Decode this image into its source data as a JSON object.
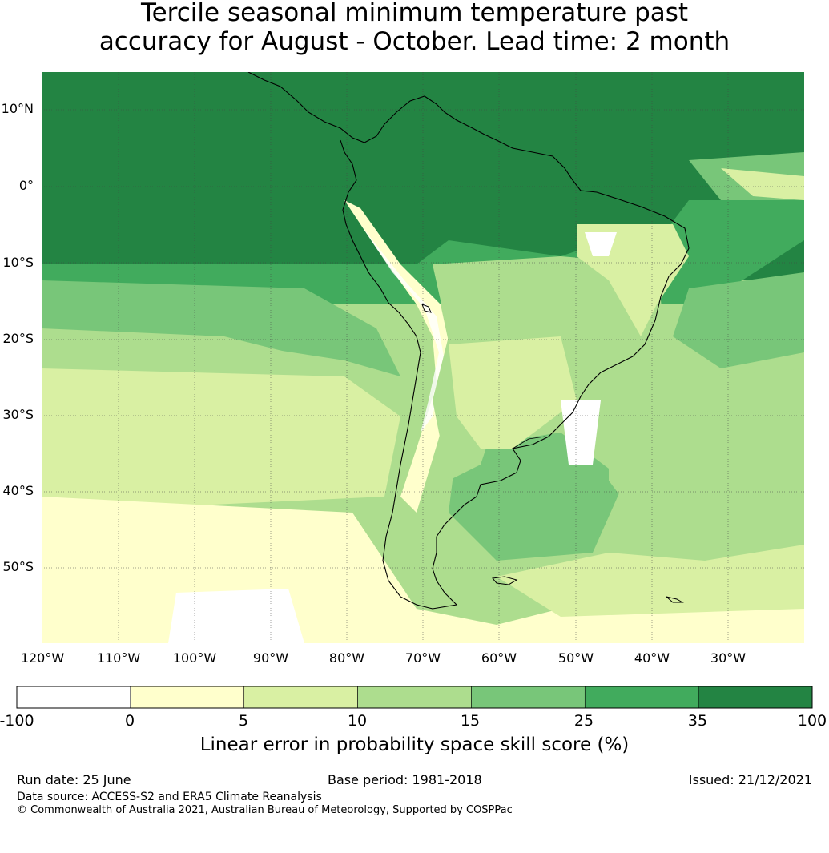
{
  "title": {
    "line1": "Tercile seasonal minimum temperature past",
    "line2": "accuracy for August - October. Lead time: 2 month"
  },
  "map": {
    "lat_labels": [
      "10°N",
      "0°",
      "10°S",
      "20°S",
      "30°S",
      "40°S",
      "50°S"
    ],
    "lon_labels": [
      "120°W",
      "110°W",
      "100°W",
      "90°W",
      "80°W",
      "70°W",
      "60°W",
      "50°W",
      "40°W",
      "30°W"
    ]
  },
  "colorbar": {
    "ticks": [
      "-100",
      "0",
      "5",
      "10",
      "15",
      "25",
      "35",
      "100"
    ],
    "bins": [
      {
        "from": -100,
        "to": 0,
        "color": "#ffffff"
      },
      {
        "from": 0,
        "to": 5,
        "color": "#ffffcc"
      },
      {
        "from": 5,
        "to": 10,
        "color": "#d9f0a3"
      },
      {
        "from": 10,
        "to": 15,
        "color": "#addd8e"
      },
      {
        "from": 15,
        "to": 25,
        "color": "#78c679"
      },
      {
        "from": 25,
        "to": 35,
        "color": "#41ab5d"
      },
      {
        "from": 35,
        "to": 100,
        "color": "#238443"
      }
    ],
    "label": "Linear error in probability space skill score (%)"
  },
  "footer": {
    "run_date": "Run date: 25 June",
    "base_period": "Base period: 1981-2018",
    "issued": "Issued: 21/12/2021",
    "data_source": "Data source: ACCESS-S2 and ERA5 Climate Reanalysis",
    "copyright": "© Commonwealth of Australia 2021, Australian Bureau of Meteorology, Supported by COSPPac"
  }
}
